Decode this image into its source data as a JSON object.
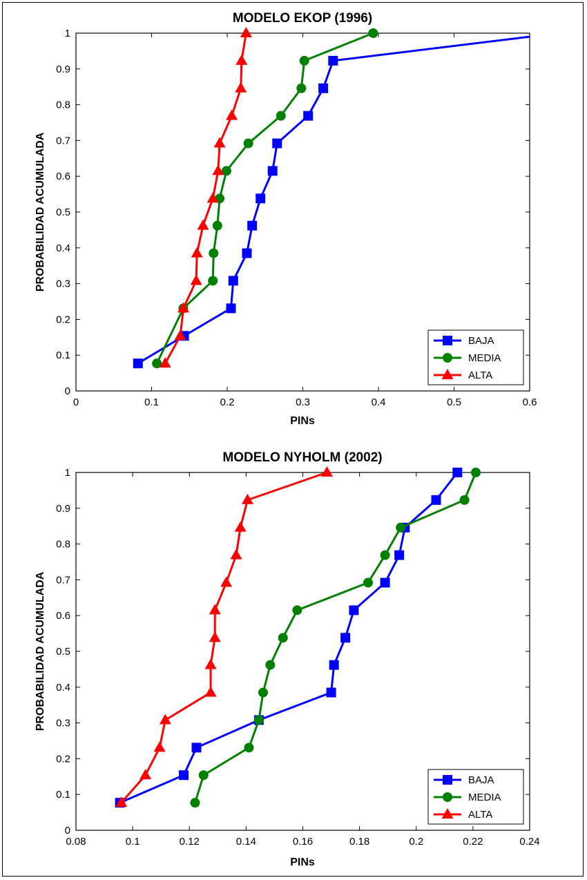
{
  "chart_data": [
    {
      "type": "line",
      "title": "MODELO EKOP (1996)",
      "xlabel": "PINs",
      "ylabel": "PROBABILIDAD ACUMULADA",
      "xlim": [
        0,
        0.6
      ],
      "ylim": [
        0,
        1
      ],
      "xticks": [
        "0",
        "0.1",
        "0.2",
        "0.3",
        "0.4",
        "0.5",
        "0.6"
      ],
      "yticks": [
        "0",
        "0.1",
        "0.2",
        "0.3",
        "0.4",
        "0.5",
        "0.6",
        "0.7",
        "0.8",
        "0.9",
        "1"
      ],
      "legend_position": "bottom-right",
      "series": [
        {
          "name": "BAJA",
          "color": "#0000ff",
          "marker": "square",
          "x": [
            0.082,
            0.143,
            0.205,
            0.208,
            0.226,
            0.233,
            0.244,
            0.26,
            0.266,
            0.307,
            0.327,
            0.34,
            0.6
          ],
          "y": [
            0.077,
            0.154,
            0.231,
            0.308,
            0.385,
            0.462,
            0.538,
            0.615,
            0.692,
            0.769,
            0.846,
            0.923,
            0.99
          ]
        },
        {
          "name": "MEDIA",
          "color": "#008000",
          "marker": "circle",
          "x": [
            0.107,
            0.142,
            0.181,
            0.182,
            0.187,
            0.19,
            0.199,
            0.228,
            0.271,
            0.298,
            0.302,
            0.393
          ],
          "y": [
            0.077,
            0.231,
            0.308,
            0.385,
            0.462,
            0.538,
            0.615,
            0.692,
            0.769,
            0.846,
            0.923,
            1.0
          ]
        },
        {
          "name": "ALTA",
          "color": "#ff0000",
          "marker": "triangle",
          "x": [
            0.118,
            0.138,
            0.142,
            0.159,
            0.16,
            0.168,
            0.181,
            0.188,
            0.19,
            0.206,
            0.218,
            0.219,
            0.225
          ],
          "y": [
            0.077,
            0.154,
            0.231,
            0.308,
            0.385,
            0.462,
            0.538,
            0.615,
            0.692,
            0.769,
            0.846,
            0.923,
            1.0
          ]
        }
      ]
    },
    {
      "type": "line",
      "title": "MODELO NYHOLM (2002)",
      "xlabel": "PINs",
      "ylabel": "PROBABILIDAD ACUMULADA",
      "xlim": [
        0.08,
        0.24
      ],
      "ylim": [
        0,
        1
      ],
      "xticks": [
        "0.08",
        "0.1",
        "0.12",
        "0.14",
        "0.16",
        "0.18",
        "0.2",
        "0.22",
        "0.24"
      ],
      "yticks": [
        "0",
        "0.1",
        "0.2",
        "0.3",
        "0.4",
        "0.5",
        "0.6",
        "0.7",
        "0.8",
        "0.9",
        "1"
      ],
      "legend_position": "bottom-right",
      "series": [
        {
          "name": "BAJA",
          "color": "#0000ff",
          "marker": "square",
          "x": [
            0.0955,
            0.118,
            0.1225,
            0.1445,
            0.17,
            0.171,
            0.175,
            0.178,
            0.189,
            0.194,
            0.196,
            0.207,
            0.2145
          ],
          "y": [
            0.077,
            0.154,
            0.231,
            0.308,
            0.385,
            0.462,
            0.538,
            0.615,
            0.692,
            0.769,
            0.846,
            0.923,
            1.0
          ]
        },
        {
          "name": "MEDIA",
          "color": "#008000",
          "marker": "circle",
          "x": [
            0.122,
            0.125,
            0.141,
            0.1445,
            0.146,
            0.1485,
            0.153,
            0.158,
            0.183,
            0.189,
            0.1945,
            0.217,
            0.221
          ],
          "y": [
            0.077,
            0.154,
            0.231,
            0.308,
            0.385,
            0.462,
            0.538,
            0.615,
            0.692,
            0.769,
            0.846,
            0.923,
            1.0
          ]
        },
        {
          "name": "ALTA",
          "color": "#ff0000",
          "marker": "triangle",
          "x": [
            0.096,
            0.1045,
            0.1095,
            0.1115,
            0.1275,
            0.1275,
            0.129,
            0.129,
            0.133,
            0.1365,
            0.138,
            0.1405,
            0.1685
          ],
          "y": [
            0.077,
            0.154,
            0.231,
            0.308,
            0.385,
            0.462,
            0.538,
            0.615,
            0.692,
            0.769,
            0.846,
            0.923,
            1.0
          ]
        }
      ]
    }
  ]
}
